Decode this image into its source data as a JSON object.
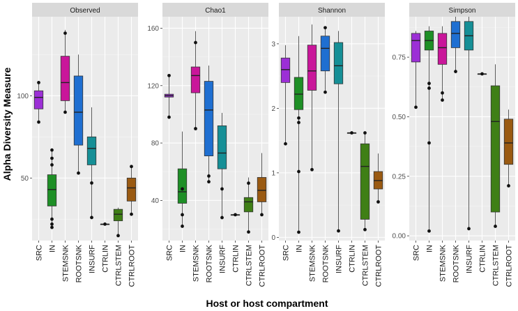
{
  "chart_data": {
    "type": "boxplot",
    "xlabel": "Host or host compartment",
    "ylabel": "Alpha Diversity Measure",
    "categories": [
      "SRC",
      "IN",
      "STEMSNK",
      "ROOTSNK",
      "INSURF",
      "CTRLIN",
      "CTRLSTEM",
      "CTRLROOT"
    ],
    "colors": {
      "SRC": "#9c2fd6",
      "IN": "#1e8f26",
      "STEMSNK": "#c9169a",
      "ROOTSNK": "#1f6fd1",
      "INSURF": "#168f96",
      "CTRLIN": "#7c3fc0",
      "CTRLSTEM": "#3f7f16",
      "CTRLROOT": "#9a5a12"
    },
    "panels": [
      {
        "title": "Observed",
        "ylim": [
          12,
          148
        ],
        "yticks": [
          50,
          100
        ],
        "boxes": [
          {
            "category": "SRC",
            "whislo": 85,
            "q1": 92,
            "med": 99,
            "q3": 103,
            "whishi": 108,
            "outliers": [
              84,
              108
            ]
          },
          {
            "category": "IN",
            "whislo": 20,
            "q1": 33,
            "med": 43,
            "q3": 52,
            "whishi": 68,
            "outliers": [
              20,
              22,
              25,
              58,
              62,
              67
            ]
          },
          {
            "category": "STEMSNK",
            "whislo": 90,
            "q1": 97,
            "med": 108,
            "q3": 124,
            "whishi": 140,
            "outliers": [
              90,
              138
            ]
          },
          {
            "category": "ROOTSNK",
            "whislo": 53,
            "q1": 70,
            "med": 90,
            "q3": 112,
            "whishi": 125,
            "outliers": [
              53
            ]
          },
          {
            "category": "INSURF",
            "whislo": 26,
            "q1": 58,
            "med": 68,
            "q3": 75,
            "whishi": 93,
            "outliers": [
              26,
              47
            ]
          },
          {
            "category": "CTRLIN",
            "whislo": 22,
            "q1": 22,
            "med": 22,
            "q3": 22,
            "whishi": 22,
            "outliers": [
              22
            ]
          },
          {
            "category": "CTRLSTEM",
            "whislo": 15,
            "q1": 24,
            "med": 28,
            "q3": 31,
            "whishi": 32,
            "outliers": [
              15
            ]
          },
          {
            "category": "CTRLROOT",
            "whislo": 28,
            "q1": 36,
            "med": 44,
            "q3": 50,
            "whishi": 57,
            "outliers": [
              28,
              57
            ]
          }
        ]
      },
      {
        "title": "Chao1",
        "ylim": [
          12,
          168
        ],
        "yticks": [
          40,
          80,
          120,
          160
        ],
        "boxes": [
          {
            "category": "SRC",
            "whislo": 98,
            "q1": 112,
            "med": 113,
            "q3": 114,
            "whishi": 127,
            "outliers": [
              98,
              127
            ]
          },
          {
            "category": "IN",
            "whislo": 22,
            "q1": 38,
            "med": 46,
            "q3": 62,
            "whishi": 88,
            "outliers": [
              22,
              30,
              48
            ]
          },
          {
            "category": "STEMSNK",
            "whislo": 90,
            "q1": 115,
            "med": 127,
            "q3": 133,
            "whishi": 158,
            "outliers": [
              90,
              150
            ]
          },
          {
            "category": "ROOTSNK",
            "whislo": 53,
            "q1": 71,
            "med": 103,
            "q3": 123,
            "whishi": 134,
            "outliers": [
              53,
              57
            ]
          },
          {
            "category": "INSURF",
            "whislo": 28,
            "q1": 62,
            "med": 73,
            "q3": 92,
            "whishi": 101,
            "outliers": [
              28,
              48
            ]
          },
          {
            "category": "CTRLIN",
            "whislo": 30,
            "q1": 30,
            "med": 30,
            "q3": 30,
            "whishi": 30,
            "outliers": [
              30
            ]
          },
          {
            "category": "CTRLSTEM",
            "whislo": 18,
            "q1": 32,
            "med": 39,
            "q3": 42,
            "whishi": 56,
            "outliers": [
              18,
              52
            ]
          },
          {
            "category": "CTRLROOT",
            "whislo": 30,
            "q1": 39,
            "med": 47,
            "q3": 56,
            "whishi": 73,
            "outliers": [
              30
            ]
          }
        ]
      },
      {
        "title": "Shannon",
        "ylim": [
          -0.05,
          3.42
        ],
        "yticks": [
          0,
          1,
          2,
          3
        ],
        "boxes": [
          {
            "category": "SRC",
            "whislo": 1.45,
            "q1": 2.4,
            "med": 2.6,
            "q3": 2.78,
            "whishi": 2.98,
            "outliers": [
              1.45
            ]
          },
          {
            "category": "IN",
            "whislo": 0.08,
            "q1": 1.98,
            "med": 2.22,
            "q3": 2.48,
            "whishi": 3.12,
            "outliers": [
              0.08,
              1.02,
              1.78,
              1.85
            ]
          },
          {
            "category": "STEMSNK",
            "whislo": 1.05,
            "q1": 2.28,
            "med": 2.58,
            "q3": 2.98,
            "whishi": 3.3,
            "outliers": [
              1.05
            ]
          },
          {
            "category": "ROOTSNK",
            "whislo": 2.25,
            "q1": 2.58,
            "med": 2.93,
            "q3": 3.12,
            "whishi": 3.25,
            "outliers": [
              2.25,
              3.25
            ]
          },
          {
            "category": "INSURF",
            "whislo": 0.1,
            "q1": 2.38,
            "med": 2.66,
            "q3": 3.02,
            "whishi": 3.2,
            "outliers": [
              0.1
            ]
          },
          {
            "category": "CTRLIN",
            "whislo": 1.62,
            "q1": 1.62,
            "med": 1.62,
            "q3": 1.62,
            "whishi": 1.62,
            "outliers": [
              1.62
            ]
          },
          {
            "category": "CTRLSTEM",
            "whislo": 0.12,
            "q1": 0.28,
            "med": 1.1,
            "q3": 1.45,
            "whishi": 1.62,
            "outliers": [
              0.12,
              1.62
            ]
          },
          {
            "category": "CTRLROOT",
            "whislo": 0.55,
            "q1": 0.75,
            "med": 0.88,
            "q3": 1.02,
            "whishi": 1.3,
            "outliers": [
              0.55
            ]
          }
        ]
      },
      {
        "title": "Simpson",
        "ylim": [
          -0.02,
          0.92
        ],
        "yticks": [
          0.0,
          0.25,
          0.5,
          0.75
        ],
        "ytick_labels": [
          "0.00",
          "0.25",
          "0.50",
          "0.75"
        ],
        "boxes": [
          {
            "category": "SRC",
            "whislo": 0.54,
            "q1": 0.73,
            "med": 0.82,
            "q3": 0.85,
            "whishi": 0.86,
            "outliers": [
              0.54
            ]
          },
          {
            "category": "IN",
            "whislo": 0.02,
            "q1": 0.78,
            "med": 0.82,
            "q3": 0.86,
            "whishi": 0.88,
            "outliers": [
              0.02,
              0.39,
              0.62,
              0.64
            ]
          },
          {
            "category": "STEMSNK",
            "whislo": 0.57,
            "q1": 0.72,
            "med": 0.79,
            "q3": 0.85,
            "whishi": 0.88,
            "outliers": [
              0.57,
              0.6
            ]
          },
          {
            "category": "ROOTSNK",
            "whislo": 0.69,
            "q1": 0.79,
            "med": 0.85,
            "q3": 0.9,
            "whishi": 0.92,
            "outliers": [
              0.69
            ]
          },
          {
            "category": "INSURF",
            "whislo": 0.03,
            "q1": 0.78,
            "med": 0.84,
            "q3": 0.9,
            "whishi": 0.92,
            "outliers": [
              0.03
            ]
          },
          {
            "category": "CTRLIN",
            "whislo": 0.68,
            "q1": 0.68,
            "med": 0.68,
            "q3": 0.68,
            "whishi": 0.68,
            "outliers": [
              0.68
            ]
          },
          {
            "category": "CTRLSTEM",
            "whislo": 0.04,
            "q1": 0.1,
            "med": 0.48,
            "q3": 0.63,
            "whishi": 0.72,
            "outliers": [
              0.04
            ]
          },
          {
            "category": "CTRLROOT",
            "whislo": 0.21,
            "q1": 0.3,
            "med": 0.39,
            "q3": 0.49,
            "whishi": 0.53,
            "outliers": [
              0.21
            ]
          }
        ]
      }
    ]
  }
}
